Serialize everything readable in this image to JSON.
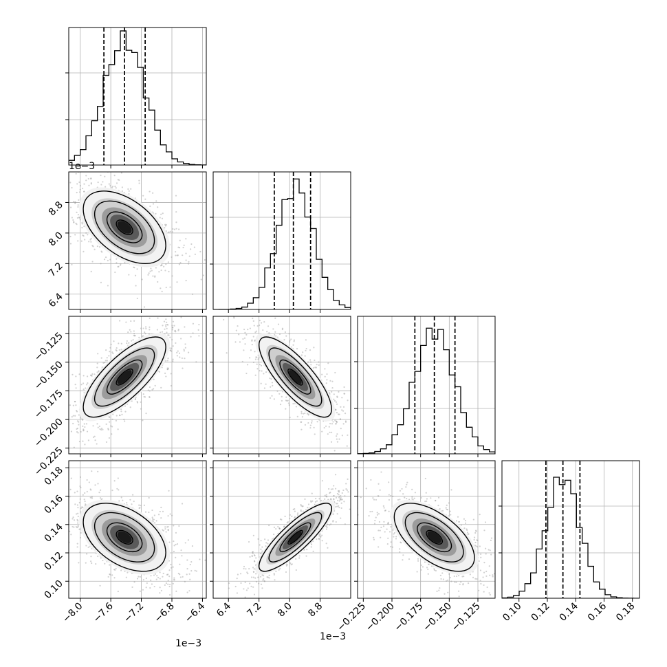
{
  "chart_data": {
    "type": "corner",
    "parameters": [
      "",
      "",
      "",
      ""
    ],
    "offset_labels": {
      "x0": "1e−3",
      "x1": "1e−3",
      "y1": "1e−3"
    },
    "x_ticks": [
      [
        "−8.0",
        "−7.6",
        "−7.2",
        "−6.8",
        "−6.4"
      ],
      [
        "6.4",
        "7.2",
        "8.0",
        "8.8"
      ],
      [
        "−0.225",
        "−0.200",
        "−0.175",
        "−0.150",
        "−0.125"
      ],
      [
        "0.10",
        "0.12",
        "0.14",
        "0.16",
        "0.18"
      ]
    ],
    "y_ticks": [
      [],
      [
        "6.4",
        "7.2",
        "8.0",
        "8.8"
      ],
      [
        "−0.225",
        "−0.200",
        "−0.175",
        "−0.150",
        "−0.125"
      ],
      [
        "0.10",
        "0.12",
        "0.14",
        "0.16",
        "0.18"
      ]
    ],
    "ranges": [
      [
        -8.15,
        -6.35
      ],
      [
        6.0,
        9.6
      ],
      [
        -0.23,
        -0.11
      ],
      [
        0.088,
        0.185
      ]
    ],
    "means": [
      -7.42,
      8.15,
      -0.163,
      0.131
    ],
    "quantiles": [
      [
        -7.69,
        -7.42,
        -7.15
      ],
      [
        7.6,
        8.1,
        8.55
      ],
      [
        -0.18,
        -0.163,
        -0.145
      ],
      [
        0.119,
        0.131,
        0.143
      ]
    ],
    "correlations": [
      [
        1,
        -0.5,
        0.75,
        -0.45
      ],
      [
        -0.5,
        1,
        -0.8,
        0.85
      ],
      [
        0.75,
        -0.8,
        1,
        -0.6
      ],
      [
        -0.45,
        0.85,
        -0.6,
        1
      ]
    ],
    "hist_peaks": [
      0.98,
      0.97,
      0.97,
      0.95
    ],
    "grid": true,
    "diag_quantile_style": "dashed"
  }
}
